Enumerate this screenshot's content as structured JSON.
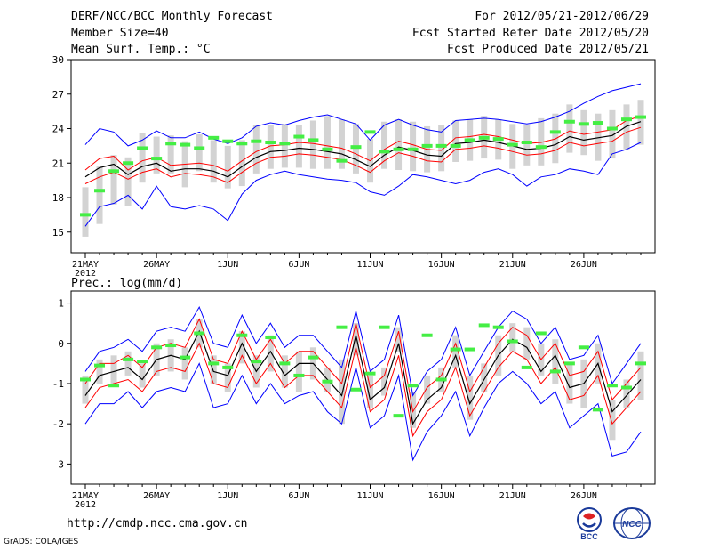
{
  "header": {
    "title": "DERF/NCC/BCC Monthly Forecast",
    "member_size": "Member Size=40",
    "variable": "Mean Surf. Temp.: °C",
    "period": "For 2012/05/21-2012/06/29",
    "fcst_started": "Fcst Started Refer Date 2012/05/20",
    "fcst_produced": "Fcst Produced Date 2012/05/21"
  },
  "footer": {
    "url": "http://cmdp.ncc.cma.gov.cn",
    "credit": "GrADS: COLA/IGES",
    "logo_left_text": "BCC",
    "logo_right_text": "NCC"
  },
  "colors": {
    "ensemble_mean": "#000000",
    "spread": "#ff0000",
    "extremes": "#0000ff",
    "bar": "#d3d3d3",
    "marker": "#44ee44"
  },
  "chart_data": [
    {
      "type": "line",
      "title": "Mean Surf. Temp.: °C",
      "xlabel": "",
      "ylabel": "",
      "x_ticks": [
        "21MAY",
        "26MAY",
        "1JUN",
        "6JUN",
        "11JUN",
        "16JUN",
        "21JUN",
        "26JUN"
      ],
      "x_year": "2012",
      "ylim": [
        13.2,
        30
      ],
      "y_ticks": [
        15,
        18,
        21,
        24,
        27,
        30
      ],
      "days": 40,
      "series": [
        {
          "name": "max",
          "values": [
            15.5,
            17.2,
            17.5,
            18.2,
            17.0,
            19.0,
            17.2,
            17.0,
            17.3,
            17.0,
            16.0,
            18.3,
            19.5,
            20.0,
            20.3,
            20.0,
            19.8,
            19.6,
            19.5,
            19.3,
            18.5,
            18.2,
            19.0,
            20.0,
            19.8,
            19.5,
            19.2,
            19.5,
            20.2,
            20.5,
            20.0,
            19.0,
            19.8,
            20.0,
            20.5,
            20.3,
            20.0,
            21.8,
            22.2,
            22.8
          ]
        },
        {
          "name": "upper",
          "values": [
            19.2,
            19.8,
            20.2,
            19.6,
            20.2,
            20.5,
            19.8,
            20.1,
            20.0,
            19.8,
            19.3,
            20.2,
            21.0,
            21.5,
            21.6,
            21.8,
            21.7,
            21.5,
            21.3,
            20.8,
            20.2,
            21.2,
            21.9,
            21.6,
            21.2,
            21.1,
            22.2,
            22.3,
            22.5,
            22.3,
            22.0,
            21.7,
            21.8,
            22.1,
            22.8,
            22.5,
            22.7,
            22.9,
            23.7,
            24.1
          ]
        },
        {
          "name": "mean",
          "values": [
            19.8,
            20.6,
            20.9,
            20.0,
            20.7,
            21.0,
            20.3,
            20.5,
            20.5,
            20.3,
            19.8,
            20.7,
            21.5,
            22.0,
            22.1,
            22.3,
            22.2,
            22.0,
            21.8,
            21.3,
            20.7,
            21.7,
            22.4,
            22.1,
            21.7,
            21.6,
            22.7,
            22.8,
            23.0,
            22.8,
            22.5,
            22.2,
            22.3,
            22.6,
            23.3,
            23.0,
            23.2,
            23.4,
            24.2,
            24.6
          ]
        },
        {
          "name": "lower",
          "values": [
            20.4,
            21.4,
            21.6,
            20.4,
            21.2,
            21.5,
            20.8,
            20.9,
            21.0,
            20.8,
            20.3,
            21.2,
            22.0,
            22.5,
            22.6,
            22.8,
            22.7,
            22.5,
            22.3,
            21.8,
            21.2,
            22.2,
            22.9,
            22.6,
            22.2,
            22.1,
            23.2,
            23.3,
            23.5,
            23.3,
            23.0,
            22.7,
            22.8,
            23.1,
            23.8,
            23.5,
            23.7,
            23.9,
            24.7,
            25.1
          ]
        },
        {
          "name": "min",
          "values": [
            22.6,
            24.0,
            23.7,
            22.5,
            23.0,
            23.8,
            23.2,
            23.2,
            23.7,
            23.1,
            22.7,
            23.2,
            24.2,
            24.5,
            24.3,
            24.7,
            25.0,
            25.2,
            24.8,
            24.4,
            23.0,
            24.3,
            24.8,
            24.3,
            23.9,
            23.7,
            24.7,
            24.8,
            24.9,
            24.8,
            24.6,
            24.4,
            24.6,
            25.0,
            25.5,
            26.2,
            26.8,
            27.3,
            27.6,
            27.9
          ]
        }
      ],
      "bar_low": [
        14.6,
        15.7,
        17.4,
        17.3,
        19.3,
        20.1,
        20.1,
        18.9,
        20.3,
        19.3,
        18.8,
        19.0,
        20.1,
        20.5,
        20.6,
        20.6,
        20.5,
        20.5,
        20.5,
        20.1,
        19.3,
        20.5,
        20.4,
        20.3,
        20.2,
        20.3,
        21.1,
        21.2,
        21.4,
        21.3,
        20.5,
        20.8,
        20.8,
        21.0,
        21.9,
        21.7,
        21.2,
        21.4,
        22.2,
        22.6
      ],
      "bar_high": [
        18.9,
        20.7,
        21.7,
        21.5,
        23.6,
        23.3,
        23.4,
        22.9,
        23.5,
        23.0,
        22.5,
        23.0,
        24.3,
        24.3,
        24.4,
        24.3,
        24.7,
        25.1,
        24.8,
        24.4,
        23.1,
        24.6,
        24.8,
        24.6,
        24.2,
        24.3,
        24.7,
        24.8,
        25.1,
        24.8,
        24.4,
        24.3,
        24.9,
        25.3,
        26.1,
        25.6,
        25.3,
        25.6,
        26.1,
        26.5
      ],
      "markers": [
        16.5,
        18.6,
        20.3,
        21.0,
        22.3,
        21.4,
        22.7,
        22.6,
        22.3,
        23.2,
        22.9,
        22.7,
        22.9,
        22.8,
        22.7,
        23.3,
        23.0,
        22.2,
        21.2,
        22.4,
        23.7,
        22.0,
        22.2,
        22.2,
        22.5,
        22.5,
        22.5,
        23.0,
        23.2,
        23.1,
        22.6,
        22.8,
        22.4,
        23.7,
        24.6,
        24.4,
        24.5,
        24.0,
        24.8,
        25.0
      ]
    },
    {
      "type": "line",
      "title": "Prec.: log(mm/d)",
      "xlabel": "",
      "ylabel": "",
      "x_ticks": [
        "21MAY",
        "26MAY",
        "1JUN",
        "6JUN",
        "11JUN",
        "16JUN",
        "21JUN",
        "26JUN"
      ],
      "x_year": "2012",
      "ylim": [
        -3.5,
        1.3
      ],
      "y_ticks": [
        -3,
        -2,
        -1,
        0,
        1
      ],
      "days": 40,
      "series": [
        {
          "name": "max",
          "values": [
            -2.0,
            -1.5,
            -1.5,
            -1.2,
            -1.6,
            -1.2,
            -1.1,
            -1.2,
            -0.5,
            -1.6,
            -1.5,
            -0.8,
            -1.5,
            -1.0,
            -1.5,
            -1.3,
            -1.2,
            -1.7,
            -2.0,
            -0.6,
            -2.1,
            -1.8,
            -0.8,
            -2.9,
            -2.2,
            -1.8,
            -1.2,
            -2.3,
            -1.6,
            -1.0,
            -0.7,
            -1.0,
            -1.5,
            -1.2,
            -2.1,
            -1.8,
            -1.5,
            -2.8,
            -2.7,
            -2.2
          ]
        },
        {
          "name": "upper",
          "values": [
            -1.6,
            -1.1,
            -1.0,
            -0.9,
            -1.2,
            -0.7,
            -0.6,
            -0.7,
            0.0,
            -1.0,
            -1.1,
            -0.3,
            -1.0,
            -0.5,
            -1.1,
            -0.8,
            -0.8,
            -1.2,
            -1.6,
            -0.1,
            -1.7,
            -1.4,
            -0.3,
            -2.3,
            -1.7,
            -1.4,
            -0.6,
            -1.8,
            -1.2,
            -0.6,
            -0.2,
            -0.4,
            -1.0,
            -0.6,
            -1.4,
            -1.3,
            -0.8,
            -2.0,
            -1.6,
            -1.2
          ]
        },
        {
          "name": "mean",
          "values": [
            -1.3,
            -0.8,
            -0.7,
            -0.6,
            -0.9,
            -0.4,
            -0.3,
            -0.4,
            0.3,
            -0.7,
            -0.8,
            0.0,
            -0.7,
            -0.2,
            -0.8,
            -0.5,
            -0.5,
            -0.9,
            -1.3,
            0.2,
            -1.4,
            -1.1,
            0.0,
            -2.0,
            -1.4,
            -1.1,
            -0.3,
            -1.5,
            -0.9,
            -0.3,
            0.1,
            -0.1,
            -0.7,
            -0.3,
            -1.1,
            -1.0,
            -0.5,
            -1.7,
            -1.3,
            -0.9
          ]
        },
        {
          "name": "lower",
          "values": [
            -1.0,
            -0.5,
            -0.5,
            -0.3,
            -0.6,
            -0.1,
            0.0,
            -0.1,
            0.6,
            -0.4,
            -0.5,
            0.3,
            -0.4,
            0.1,
            -0.5,
            -0.2,
            -0.2,
            -0.6,
            -1.0,
            0.5,
            -1.1,
            -0.8,
            0.3,
            -1.7,
            -1.1,
            -0.8,
            0.0,
            -1.2,
            -0.6,
            0.0,
            0.4,
            0.2,
            -0.4,
            0.0,
            -0.8,
            -0.7,
            -0.2,
            -1.4,
            -1.0,
            -0.6
          ]
        },
        {
          "name": "min",
          "values": [
            -0.7,
            -0.2,
            -0.1,
            0.1,
            -0.2,
            0.3,
            0.4,
            0.3,
            0.9,
            0.0,
            -0.1,
            0.7,
            0.0,
            0.5,
            -0.1,
            0.2,
            0.2,
            -0.2,
            -0.6,
            0.8,
            -0.7,
            -0.4,
            0.7,
            -1.3,
            -0.7,
            -0.4,
            0.4,
            -0.8,
            -0.2,
            0.4,
            0.8,
            0.6,
            0.0,
            0.4,
            -0.4,
            -0.3,
            0.2,
            -1.0,
            -0.5,
            0.0
          ]
        }
      ],
      "bar_low": [
        -1.5,
        -1.0,
        -1.0,
        -0.8,
        -1.1,
        -0.8,
        -0.7,
        -0.9,
        -0.1,
        -1.0,
        -1.2,
        -0.5,
        -1.1,
        -0.7,
        -1.1,
        -1.2,
        -0.9,
        -1.2,
        -2.0,
        -0.3,
        -1.6,
        -1.3,
        -0.2,
        -2.1,
        -1.5,
        -1.2,
        -0.6,
        -1.9,
        -1.2,
        -0.8,
        -0.2,
        -0.4,
        -0.8,
        -1.0,
        -1.5,
        -1.6,
        -1.0,
        -2.4,
        -1.6,
        -1.4
      ],
      "bar_high": [
        -0.8,
        -0.4,
        -0.3,
        -0.2,
        -0.5,
        0.0,
        0.1,
        -0.1,
        0.6,
        -0.3,
        -0.5,
        0.3,
        -0.3,
        0.2,
        -0.3,
        -0.2,
        -0.1,
        -0.6,
        -0.4,
        0.5,
        -0.8,
        -0.6,
        0.4,
        -1.2,
        -0.8,
        -0.6,
        0.2,
        -0.8,
        -0.5,
        0.2,
        0.5,
        0.4,
        0.0,
        0.1,
        -0.5,
        -0.4,
        0.0,
        -1.4,
        -0.9,
        -0.2
      ],
      "markers": [
        -0.9,
        -0.55,
        -1.05,
        -0.4,
        -0.45,
        -0.1,
        -0.05,
        -0.35,
        0.25,
        -0.5,
        -0.6,
        0.2,
        -0.45,
        0.15,
        -0.5,
        -0.8,
        -0.35,
        -0.95,
        0.4,
        -1.15,
        -0.75,
        0.4,
        -1.8,
        -1.05,
        0.2,
        -0.9,
        -0.15,
        -0.15,
        0.45,
        0.4,
        0.05,
        -0.6,
        0.25,
        -0.7,
        -0.5,
        -0.1,
        -1.65,
        -1.05,
        -1.1,
        -0.5
      ]
    }
  ]
}
